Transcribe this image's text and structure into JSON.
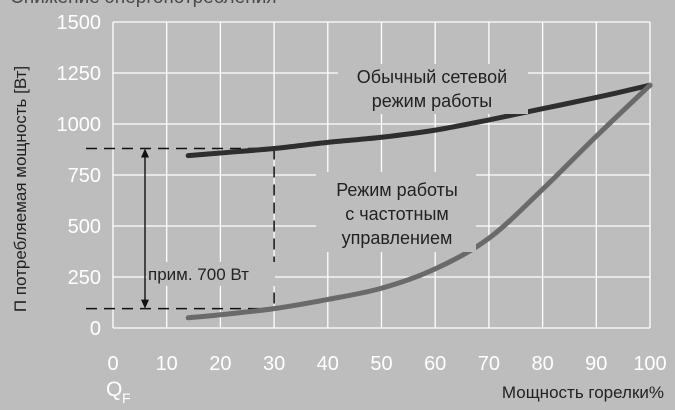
{
  "page": {
    "title_cut_off": "Снижение энергопотребления"
  },
  "colors": {
    "background": "#bdbdbd",
    "plot_background": "#bdbdbd",
    "grid": "#ffffff",
    "network_series": "#2e2e2e",
    "fc_series": "#6a6a6a",
    "tick_text": "#ffffff",
    "label_text": "#222222"
  },
  "chart_data": {
    "type": "line",
    "title": "",
    "xlabel": "Мощность горелки%",
    "ylabel": "П потребляемая мощность [Вт]",
    "xlim": [
      0,
      100
    ],
    "ylim": [
      0,
      1500
    ],
    "grid": true,
    "x_ticks": [
      0,
      10,
      20,
      30,
      40,
      50,
      60,
      70,
      80,
      90,
      100
    ],
    "y_ticks": [
      0,
      250,
      500,
      750,
      1000,
      1250,
      1500
    ],
    "x_sub_label": "Q",
    "x_sub_label_subscript": "F",
    "series": [
      {
        "name": "Обычный сетевой режим работы",
        "label_lines": [
          "Обычный сетевой",
          "режим работы"
        ],
        "x": [
          14,
          20,
          30,
          40,
          50,
          60,
          70,
          80,
          90,
          100
        ],
        "y": [
          845,
          858,
          880,
          910,
          935,
          970,
          1020,
          1075,
          1130,
          1190
        ]
      },
      {
        "name": "Режим работы с частотным управлением",
        "label_lines": [
          "Режим работы",
          "с частотным",
          "управлением"
        ],
        "x": [
          14,
          20,
          30,
          40,
          50,
          60,
          70,
          80,
          90,
          100
        ],
        "y": [
          50,
          65,
          95,
          140,
          195,
          290,
          440,
          680,
          940,
          1190
        ]
      }
    ],
    "annotation": {
      "text": "прим. 700 Вт",
      "x": 30,
      "y_top": 880,
      "y_bottom": 95
    }
  }
}
